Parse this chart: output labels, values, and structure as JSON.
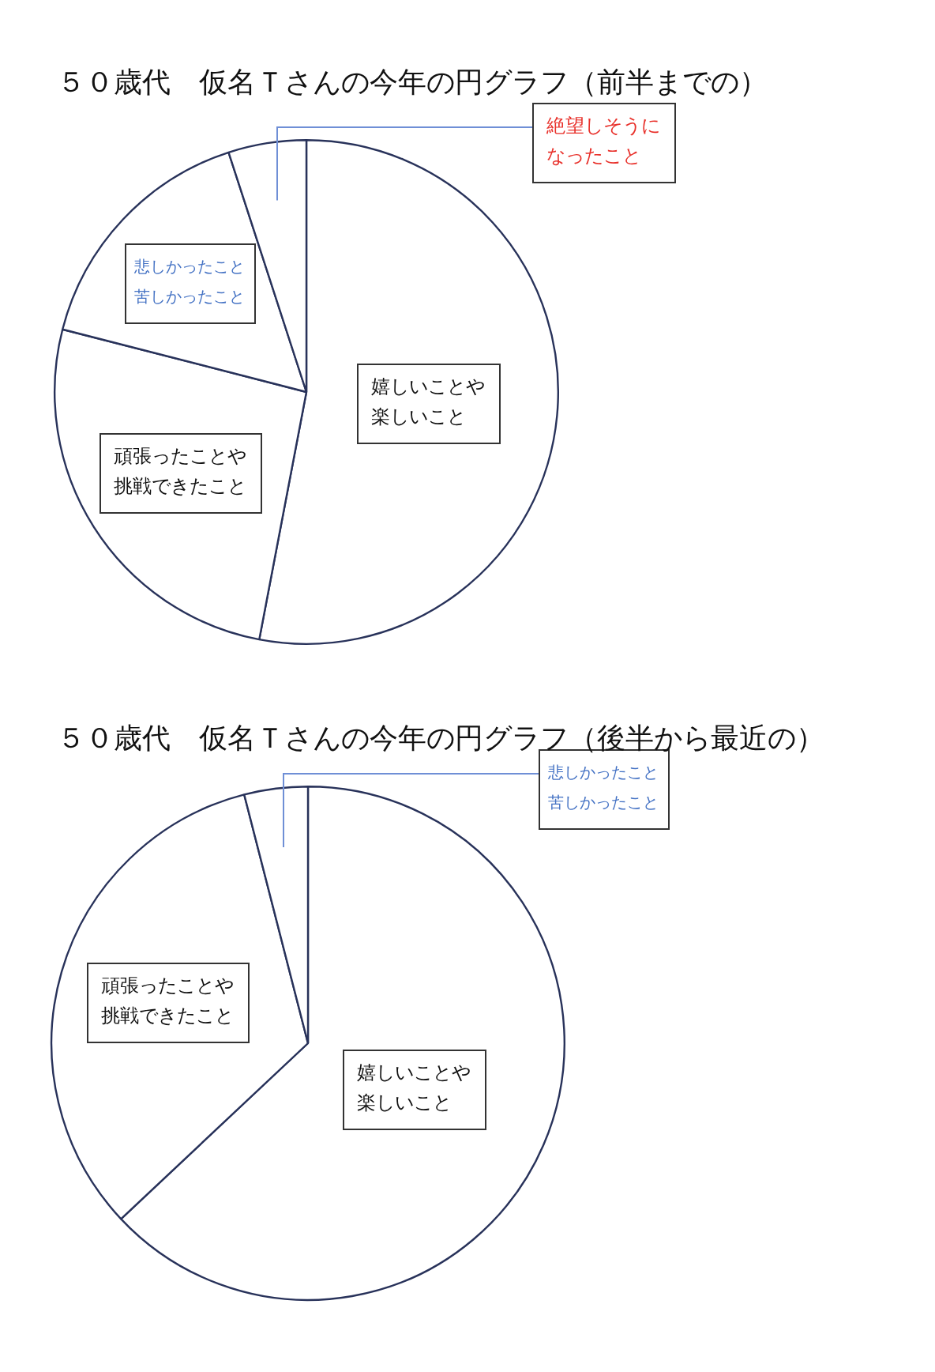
{
  "chart_data": [
    {
      "type": "pie",
      "title": "５０歳代　仮名Ｔさんの今年の円グラフ（前半までの）",
      "categories": [
        "嬉しいことや楽しいこと",
        "頑張ったことや挑戦できたこと",
        "悲しかったこと苦しかったこと",
        "絶望しそうになったこと"
      ],
      "values": [
        53,
        26,
        16,
        5
      ],
      "colors": [
        "#ffffff",
        "#ffffff",
        "#ffffff",
        "#ffffff"
      ]
    },
    {
      "type": "pie",
      "title": "５０歳代　仮名Ｔさんの今年の円グラフ（後半から最近の）",
      "categories": [
        "嬉しいことや楽しいこと",
        "頑張ったことや挑戦できたこと",
        "悲しかったこと苦しかったこと"
      ],
      "values": [
        63,
        33,
        4
      ],
      "colors": [
        "#ffffff",
        "#ffffff",
        "#ffffff"
      ]
    }
  ]
}
